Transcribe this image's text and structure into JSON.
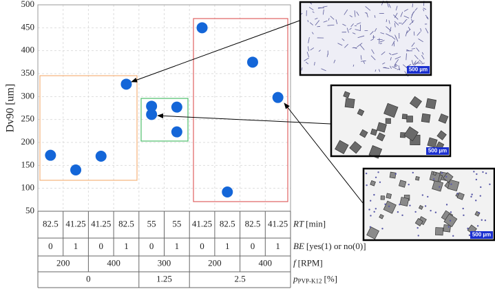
{
  "chart_data": {
    "type": "scatter",
    "y_label": "Dv90 [um]",
    "x": [
      1,
      2,
      3,
      4,
      5,
      5,
      6,
      6,
      7,
      8,
      9,
      10
    ],
    "values": [
      172,
      140,
      170,
      327,
      279,
      261,
      277,
      223,
      450,
      92,
      375,
      298
    ],
    "color": "#1466d8",
    "xlim": [
      0.5,
      10.5
    ],
    "ylim": [
      50,
      500
    ],
    "yticks": [
      50,
      100,
      150,
      200,
      250,
      300,
      350,
      400,
      450,
      500
    ],
    "grid": true
  },
  "table": {
    "rows": [
      {
        "symbol": "RT",
        "unit": "[min]",
        "cells": [
          "82.5",
          "41.25",
          "41.25",
          "82.5",
          "55",
          "55",
          "41.25",
          "82.5",
          "82.5",
          "41.25"
        ]
      },
      {
        "symbol": "BE",
        "unit": "[yes(1) or no(0)]",
        "cells": [
          "0",
          "1",
          "0",
          "1",
          "0",
          "1",
          "0",
          "1",
          "0",
          "1"
        ]
      },
      {
        "symbol": "f",
        "unit": "[RPM]",
        "cells": [
          "200",
          "400",
          "300",
          "200",
          "400"
        ]
      },
      {
        "symbol": "p",
        "subscript": "PVP-K12",
        "unit": "[%]",
        "cells": [
          "0",
          "1.25",
          "2.5"
        ]
      }
    ]
  },
  "images": [
    {
      "scale_label": "500 µm"
    },
    {
      "scale_label": "500 µm"
    },
    {
      "scale_label": "500 µm"
    }
  ]
}
